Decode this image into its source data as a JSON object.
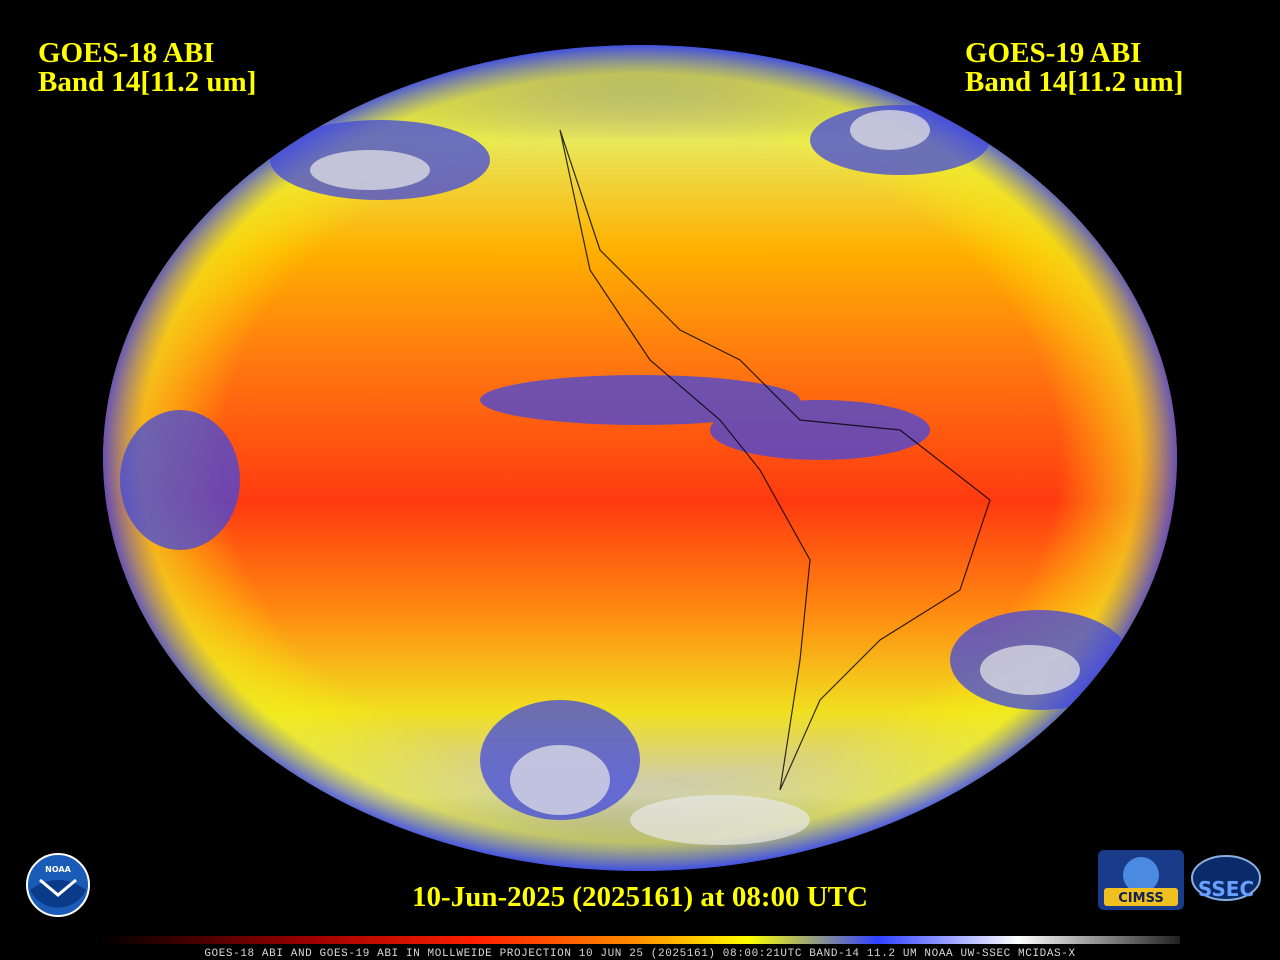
{
  "left_label": {
    "satellite": "GOES-18 ABI",
    "band": "Band 14[11.2 um]"
  },
  "right_label": {
    "satellite": "GOES-19 ABI",
    "band": "Band 14[11.2 um]"
  },
  "timestamp": "10-Jun-2025 (2025161) at 08:00 UTC",
  "footer": "GOES-18 ABI AND GOES-19 ABI IN MOLLWEIDE PROJECTION 10 JUN 25 (2025161) 08:00:21UTC BAND-14 11.2 UM NOAA UW-SSEC MCIDAS-X",
  "logos": {
    "noaa": "NOAA",
    "cimss": "CIMSS",
    "ssec": "SSEC"
  }
}
